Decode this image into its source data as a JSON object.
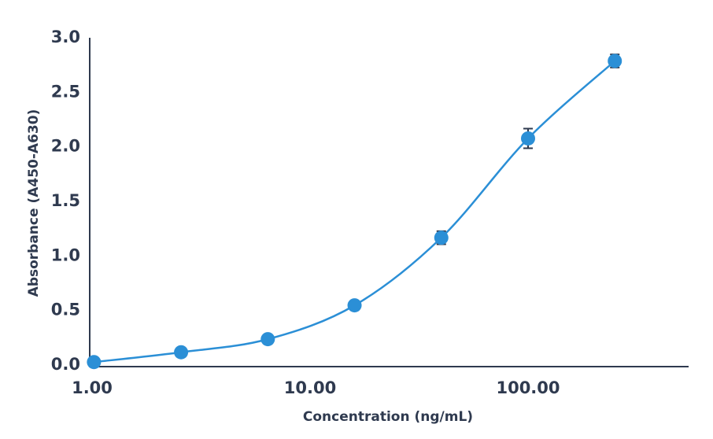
{
  "chart_data": {
    "type": "scatter",
    "title": "",
    "xlabel": "Concentration (ng/mL)",
    "ylabel": "Absorbance (A450-A630)",
    "x_scale": "log",
    "xlim": [
      1,
      600
    ],
    "ylim": [
      0,
      3.0
    ],
    "x_ticks": [
      "1.00",
      "10.00",
      "100.00"
    ],
    "y_ticks": [
      "0.0",
      "0.5",
      "1.0",
      "1.5",
      "2.0",
      "2.5",
      "3.0"
    ],
    "grid": false,
    "colors": {
      "marker": "#2B8FD6",
      "line": "#2B8FD6",
      "axis": "#2F3A4F"
    },
    "series": [
      {
        "points": [
          {
            "x": 1.02,
            "y": 0.02,
            "err": 0.0
          },
          {
            "x": 2.56,
            "y": 0.11,
            "err": 0.0
          },
          {
            "x": 6.4,
            "y": 0.23,
            "err": 0.0
          },
          {
            "x": 16.0,
            "y": 0.54,
            "err": 0.0
          },
          {
            "x": 40.0,
            "y": 1.16,
            "err": 0.06
          },
          {
            "x": 100.0,
            "y": 2.07,
            "err": 0.09
          },
          {
            "x": 250.0,
            "y": 2.78,
            "err": 0.06
          }
        ]
      }
    ]
  }
}
